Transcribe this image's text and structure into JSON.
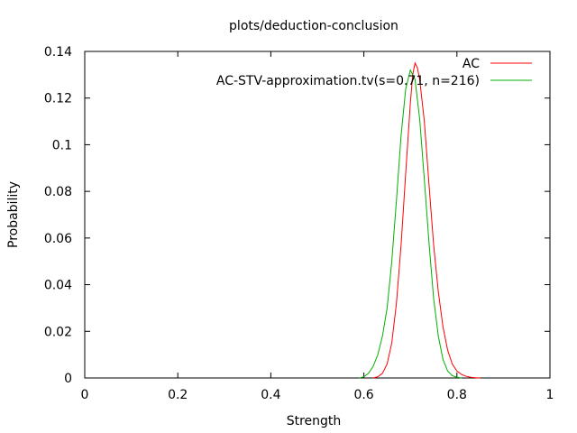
{
  "chart_data": {
    "type": "line",
    "title": "plots/deduction-conclusion",
    "xlabel": "Strength",
    "ylabel": "Probability",
    "xlim": [
      0,
      1
    ],
    "ylim": [
      0,
      0.14
    ],
    "grid": false,
    "legend_position": "top-right",
    "x_ticks": [
      0,
      0.2,
      0.4,
      0.6,
      0.8,
      1
    ],
    "x_tick_labels": [
      "0",
      "0.2",
      "0.4",
      "0.6",
      "0.8",
      "1"
    ],
    "y_ticks": [
      0,
      0.02,
      0.04,
      0.06,
      0.08,
      0.1,
      0.12,
      0.14
    ],
    "y_tick_labels": [
      "0",
      "0.02",
      "0.04",
      "0.06",
      "0.08",
      "0.1",
      "0.12",
      "0.14"
    ],
    "series": [
      {
        "name": "AC",
        "color": "#ff0000",
        "x": [
          0.62,
          0.63,
          0.64,
          0.65,
          0.66,
          0.67,
          0.68,
          0.69,
          0.7,
          0.705,
          0.71,
          0.715,
          0.72,
          0.73,
          0.74,
          0.75,
          0.76,
          0.77,
          0.78,
          0.79,
          0.8,
          0.81,
          0.82,
          0.83,
          0.84,
          0.85
        ],
        "y": [
          0,
          0.0005,
          0.002,
          0.006,
          0.015,
          0.032,
          0.057,
          0.088,
          0.118,
          0.13,
          0.135,
          0.133,
          0.128,
          0.11,
          0.083,
          0.057,
          0.037,
          0.022,
          0.012,
          0.006,
          0.003,
          0.0015,
          0.0007,
          0.0003,
          0.0001,
          0
        ]
      },
      {
        "name": "AC-STV-approximation.tv(s=0.71, n=216)",
        "color": "#00b000",
        "x": [
          0.59,
          0.6,
          0.61,
          0.62,
          0.63,
          0.64,
          0.65,
          0.66,
          0.67,
          0.68,
          0.69,
          0.7,
          0.71,
          0.72,
          0.73,
          0.74,
          0.75,
          0.76,
          0.77,
          0.78,
          0.79,
          0.8,
          0.81
        ],
        "y": [
          0,
          0.0005,
          0.002,
          0.005,
          0.01,
          0.018,
          0.03,
          0.05,
          0.076,
          0.104,
          0.124,
          0.132,
          0.128,
          0.111,
          0.085,
          0.058,
          0.034,
          0.018,
          0.008,
          0.003,
          0.001,
          0.0003,
          0
        ]
      }
    ]
  }
}
